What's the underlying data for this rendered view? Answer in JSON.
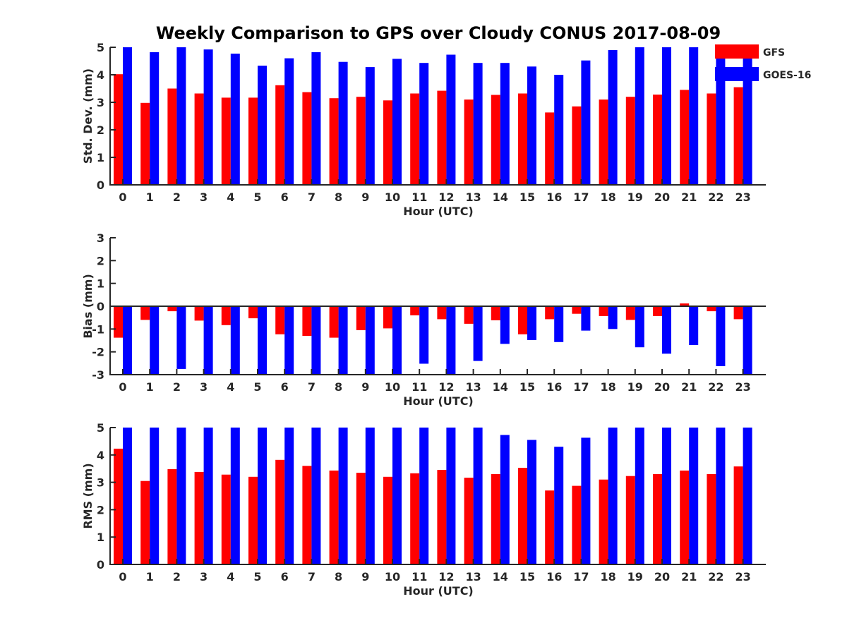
{
  "title": "Weekly Comparison to GPS over Cloudy CONUS 2017-08-09",
  "colors": {
    "GFS": "#ff0000",
    "GOES-16": "#0000ff",
    "axis": "#262626"
  },
  "legend": {
    "placement": "top-right",
    "entries": [
      "GFS",
      "GOES-16"
    ]
  },
  "chart_data": [
    {
      "type": "bar",
      "xlabel": "Hour (UTC)",
      "ylabel": "Std. Dev. (mm)",
      "ylim": [
        0,
        5
      ],
      "yticks": [
        0,
        1,
        2,
        3,
        4,
        5
      ],
      "categories": [
        "0",
        "1",
        "2",
        "3",
        "4",
        "5",
        "6",
        "7",
        "8",
        "9",
        "10",
        "11",
        "12",
        "13",
        "14",
        "15",
        "16",
        "17",
        "18",
        "19",
        "20",
        "21",
        "22",
        "23"
      ],
      "series": [
        {
          "name": "GFS",
          "values": [
            4.02,
            2.98,
            3.5,
            3.32,
            3.17,
            3.17,
            3.62,
            3.37,
            3.15,
            3.2,
            3.07,
            3.32,
            3.42,
            3.1,
            3.27,
            3.32,
            2.63,
            2.85,
            3.1,
            3.2,
            3.28,
            3.45,
            3.32,
            3.55
          ]
        },
        {
          "name": "GOES-16",
          "values": [
            5.0,
            4.82,
            5.0,
            4.92,
            4.77,
            4.33,
            4.6,
            4.82,
            4.47,
            4.28,
            4.58,
            4.43,
            4.73,
            4.43,
            4.43,
            4.3,
            4.0,
            4.52,
            4.9,
            5.0,
            5.0,
            5.0,
            4.92,
            4.6
          ]
        }
      ]
    },
    {
      "type": "bar",
      "xlabel": "Hour (UTC)",
      "ylabel": "Bias (mm)",
      "ylim": [
        -3,
        3
      ],
      "yticks": [
        -3,
        -2,
        -1,
        0,
        1,
        2,
        3
      ],
      "categories": [
        "0",
        "1",
        "2",
        "3",
        "4",
        "5",
        "6",
        "7",
        "8",
        "9",
        "10",
        "11",
        "12",
        "13",
        "14",
        "15",
        "16",
        "17",
        "18",
        "19",
        "20",
        "21",
        "22",
        "23"
      ],
      "series": [
        {
          "name": "GFS",
          "values": [
            -1.38,
            -0.6,
            -0.22,
            -0.63,
            -0.83,
            -0.53,
            -1.23,
            -1.3,
            -1.38,
            -1.05,
            -0.97,
            -0.4,
            -0.57,
            -0.77,
            -0.62,
            -1.23,
            -0.57,
            -0.33,
            -0.43,
            -0.6,
            -0.43,
            0.12,
            -0.22,
            -0.57
          ]
        },
        {
          "name": "GOES-16",
          "values": [
            -3.0,
            -3.0,
            -2.75,
            -3.0,
            -3.0,
            -3.0,
            -3.0,
            -3.0,
            -3.0,
            -3.0,
            -3.0,
            -2.52,
            -3.0,
            -2.4,
            -1.65,
            -1.48,
            -1.57,
            -1.07,
            -1.0,
            -1.8,
            -2.08,
            -1.7,
            -2.63,
            -3.0
          ]
        }
      ]
    },
    {
      "type": "bar",
      "xlabel": "Hour (UTC)",
      "ylabel": "RMS (mm)",
      "ylim": [
        0,
        5
      ],
      "yticks": [
        0,
        1,
        2,
        3,
        4,
        5
      ],
      "categories": [
        "0",
        "1",
        "2",
        "3",
        "4",
        "5",
        "6",
        "7",
        "8",
        "9",
        "10",
        "11",
        "12",
        "13",
        "14",
        "15",
        "16",
        "17",
        "18",
        "19",
        "20",
        "21",
        "22",
        "23"
      ],
      "series": [
        {
          "name": "GFS",
          "values": [
            4.23,
            3.05,
            3.48,
            3.38,
            3.28,
            3.2,
            3.82,
            3.6,
            3.43,
            3.35,
            3.2,
            3.33,
            3.45,
            3.17,
            3.3,
            3.53,
            2.7,
            2.87,
            3.1,
            3.23,
            3.3,
            3.43,
            3.3,
            3.58
          ]
        },
        {
          "name": "GOES-16",
          "values": [
            5.0,
            5.0,
            5.0,
            5.0,
            5.0,
            5.0,
            5.0,
            5.0,
            5.0,
            5.0,
            5.0,
            5.0,
            5.0,
            5.0,
            4.73,
            4.55,
            4.3,
            4.63,
            5.0,
            5.0,
            5.0,
            5.0,
            5.0,
            5.0
          ]
        }
      ]
    }
  ]
}
